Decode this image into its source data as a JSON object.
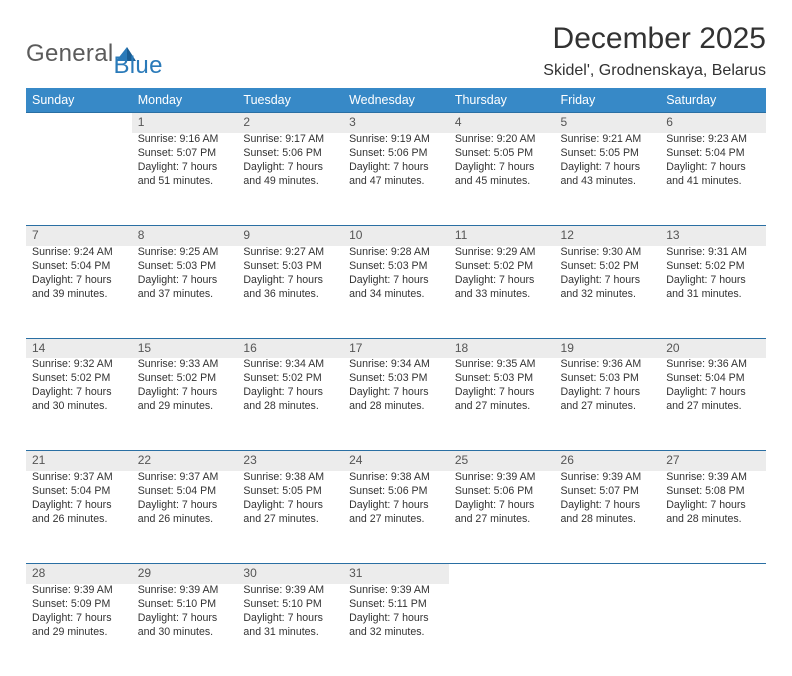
{
  "brand": {
    "name1": "General",
    "name2": "Blue"
  },
  "title": "December 2025",
  "subtitle": "Skidel', Grodnenskaya, Belarus",
  "colors": {
    "header_bg": "#3789c7",
    "header_text": "#ffffff",
    "daynum_bg": "#ececec",
    "daynum_border": "#2a6fa3",
    "brand_gray": "#5b5b5b",
    "brand_blue": "#2a7ab9",
    "text": "#333333",
    "background": "#ffffff"
  },
  "typography": {
    "title_fontsize": 30,
    "subtitle_fontsize": 16,
    "header_fontsize": 12.5,
    "daynum_fontsize": 12,
    "cell_fontsize": 10.6,
    "font_family": "Arial"
  },
  "layout": {
    "columns": 7,
    "rows": 5,
    "first_weekday_offset": 1
  },
  "weekdays": [
    "Sunday",
    "Monday",
    "Tuesday",
    "Wednesday",
    "Thursday",
    "Friday",
    "Saturday"
  ],
  "days": [
    {
      "n": 1,
      "sunrise": "9:16 AM",
      "sunset": "5:07 PM",
      "dl": "7 hours and 51 minutes."
    },
    {
      "n": 2,
      "sunrise": "9:17 AM",
      "sunset": "5:06 PM",
      "dl": "7 hours and 49 minutes."
    },
    {
      "n": 3,
      "sunrise": "9:19 AM",
      "sunset": "5:06 PM",
      "dl": "7 hours and 47 minutes."
    },
    {
      "n": 4,
      "sunrise": "9:20 AM",
      "sunset": "5:05 PM",
      "dl": "7 hours and 45 minutes."
    },
    {
      "n": 5,
      "sunrise": "9:21 AM",
      "sunset": "5:05 PM",
      "dl": "7 hours and 43 minutes."
    },
    {
      "n": 6,
      "sunrise": "9:23 AM",
      "sunset": "5:04 PM",
      "dl": "7 hours and 41 minutes."
    },
    {
      "n": 7,
      "sunrise": "9:24 AM",
      "sunset": "5:04 PM",
      "dl": "7 hours and 39 minutes."
    },
    {
      "n": 8,
      "sunrise": "9:25 AM",
      "sunset": "5:03 PM",
      "dl": "7 hours and 37 minutes."
    },
    {
      "n": 9,
      "sunrise": "9:27 AM",
      "sunset": "5:03 PM",
      "dl": "7 hours and 36 minutes."
    },
    {
      "n": 10,
      "sunrise": "9:28 AM",
      "sunset": "5:03 PM",
      "dl": "7 hours and 34 minutes."
    },
    {
      "n": 11,
      "sunrise": "9:29 AM",
      "sunset": "5:02 PM",
      "dl": "7 hours and 33 minutes."
    },
    {
      "n": 12,
      "sunrise": "9:30 AM",
      "sunset": "5:02 PM",
      "dl": "7 hours and 32 minutes."
    },
    {
      "n": 13,
      "sunrise": "9:31 AM",
      "sunset": "5:02 PM",
      "dl": "7 hours and 31 minutes."
    },
    {
      "n": 14,
      "sunrise": "9:32 AM",
      "sunset": "5:02 PM",
      "dl": "7 hours and 30 minutes."
    },
    {
      "n": 15,
      "sunrise": "9:33 AM",
      "sunset": "5:02 PM",
      "dl": "7 hours and 29 minutes."
    },
    {
      "n": 16,
      "sunrise": "9:34 AM",
      "sunset": "5:02 PM",
      "dl": "7 hours and 28 minutes."
    },
    {
      "n": 17,
      "sunrise": "9:34 AM",
      "sunset": "5:03 PM",
      "dl": "7 hours and 28 minutes."
    },
    {
      "n": 18,
      "sunrise": "9:35 AM",
      "sunset": "5:03 PM",
      "dl": "7 hours and 27 minutes."
    },
    {
      "n": 19,
      "sunrise": "9:36 AM",
      "sunset": "5:03 PM",
      "dl": "7 hours and 27 minutes."
    },
    {
      "n": 20,
      "sunrise": "9:36 AM",
      "sunset": "5:04 PM",
      "dl": "7 hours and 27 minutes."
    },
    {
      "n": 21,
      "sunrise": "9:37 AM",
      "sunset": "5:04 PM",
      "dl": "7 hours and 26 minutes."
    },
    {
      "n": 22,
      "sunrise": "9:37 AM",
      "sunset": "5:04 PM",
      "dl": "7 hours and 26 minutes."
    },
    {
      "n": 23,
      "sunrise": "9:38 AM",
      "sunset": "5:05 PM",
      "dl": "7 hours and 27 minutes."
    },
    {
      "n": 24,
      "sunrise": "9:38 AM",
      "sunset": "5:06 PM",
      "dl": "7 hours and 27 minutes."
    },
    {
      "n": 25,
      "sunrise": "9:39 AM",
      "sunset": "5:06 PM",
      "dl": "7 hours and 27 minutes."
    },
    {
      "n": 26,
      "sunrise": "9:39 AM",
      "sunset": "5:07 PM",
      "dl": "7 hours and 28 minutes."
    },
    {
      "n": 27,
      "sunrise": "9:39 AM",
      "sunset": "5:08 PM",
      "dl": "7 hours and 28 minutes."
    },
    {
      "n": 28,
      "sunrise": "9:39 AM",
      "sunset": "5:09 PM",
      "dl": "7 hours and 29 minutes."
    },
    {
      "n": 29,
      "sunrise": "9:39 AM",
      "sunset": "5:10 PM",
      "dl": "7 hours and 30 minutes."
    },
    {
      "n": 30,
      "sunrise": "9:39 AM",
      "sunset": "5:10 PM",
      "dl": "7 hours and 31 minutes."
    },
    {
      "n": 31,
      "sunrise": "9:39 AM",
      "sunset": "5:11 PM",
      "dl": "7 hours and 32 minutes."
    }
  ],
  "labels": {
    "sunrise": "Sunrise:",
    "sunset": "Sunset:",
    "daylight": "Daylight:"
  }
}
